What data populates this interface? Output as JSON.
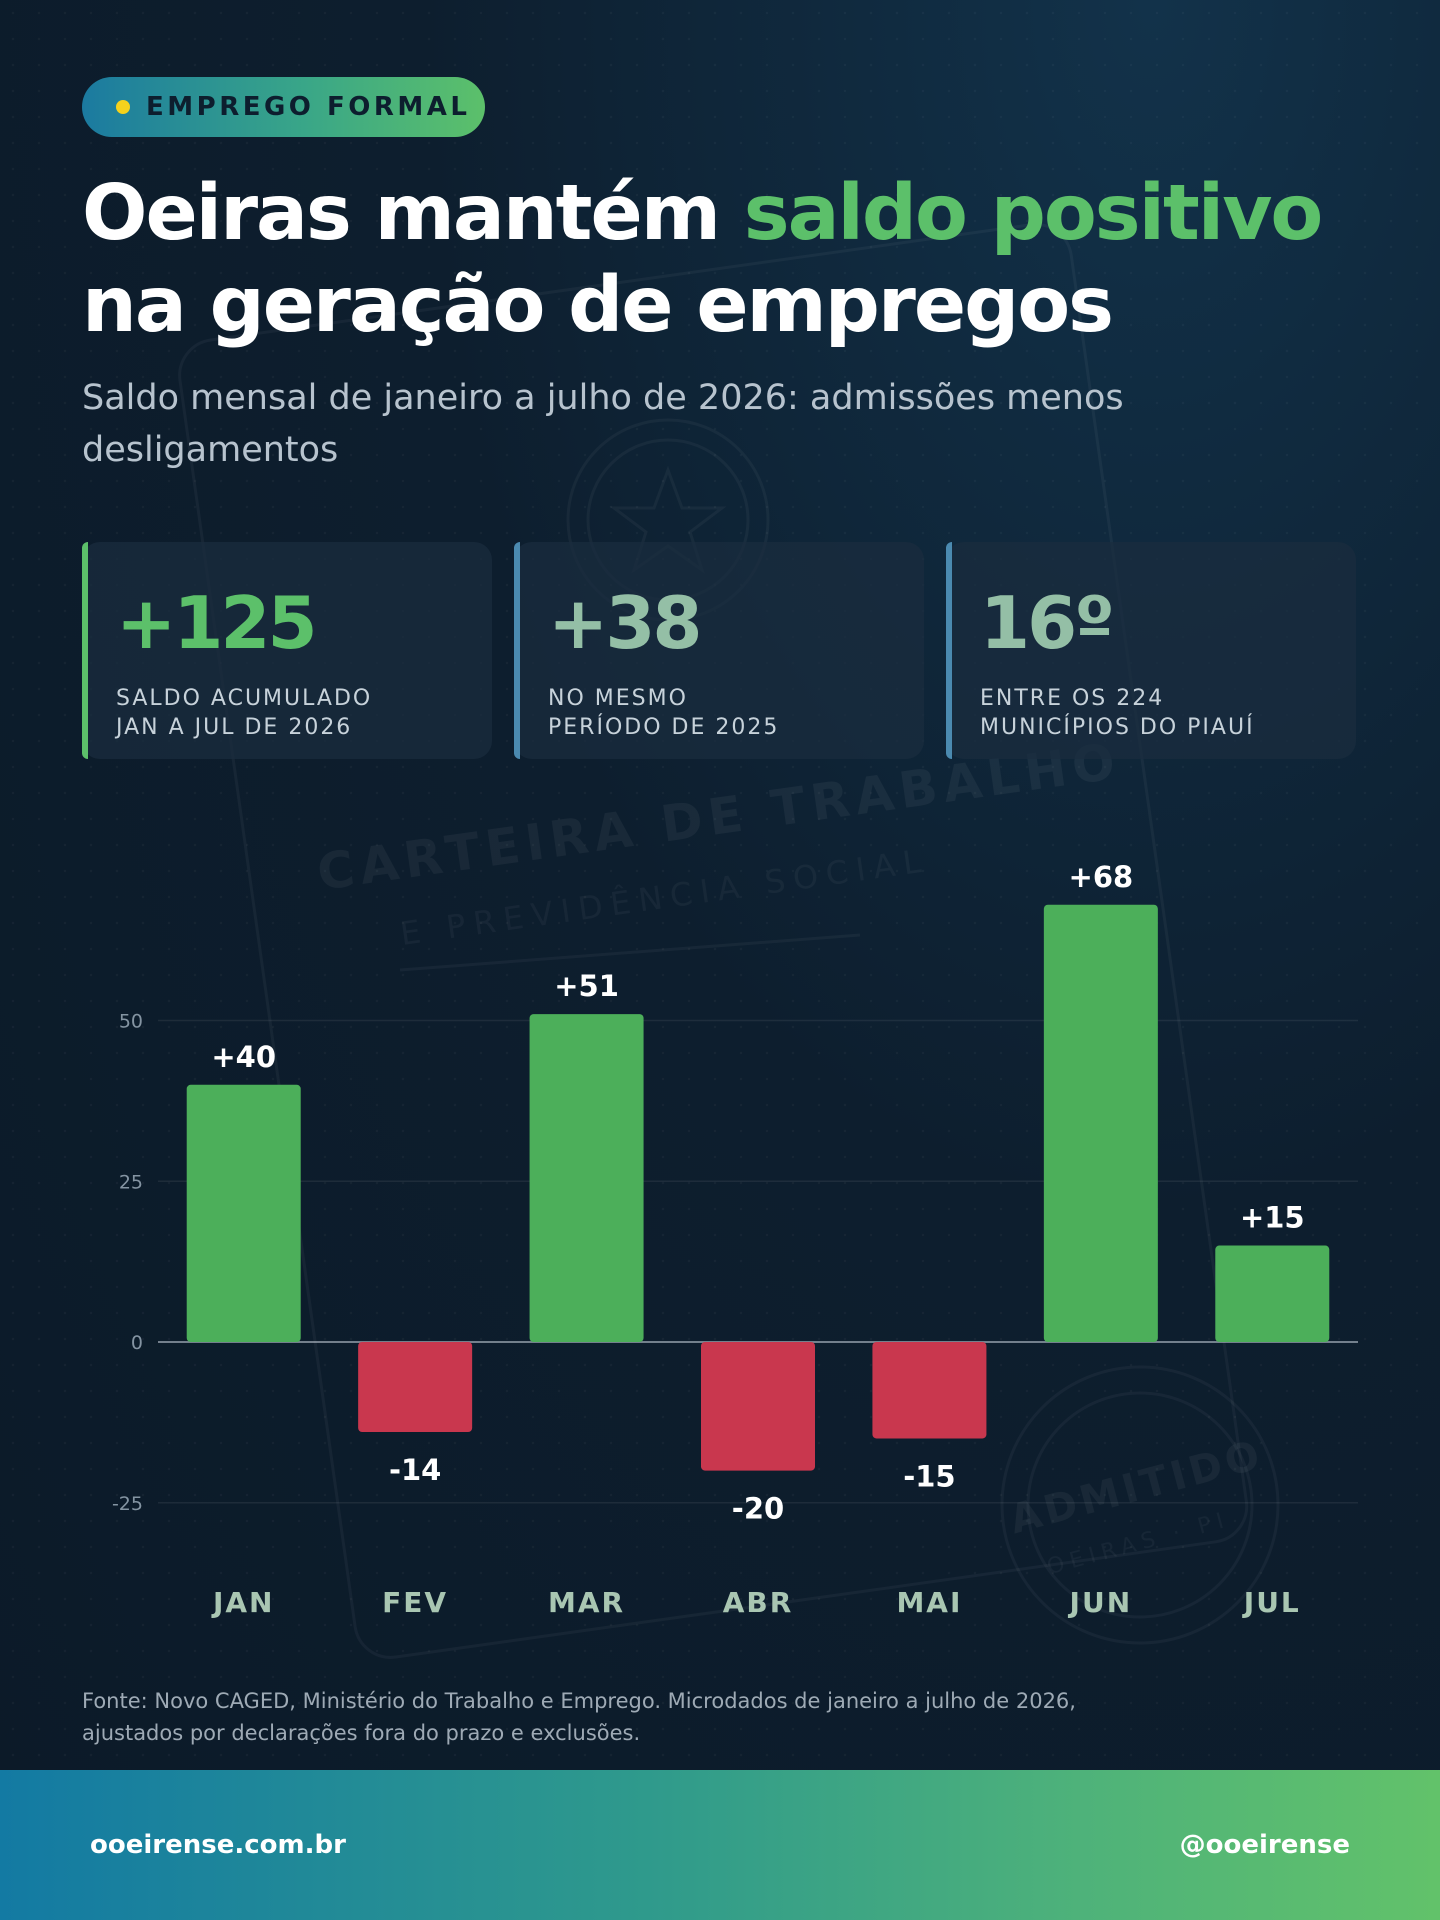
{
  "tag": {
    "label": "EMPREGO FORMAL"
  },
  "headline": {
    "part1": "Oeiras mantém ",
    "highlight": "saldo positivo",
    "part2": "na geração de empregos"
  },
  "subtitle": "Saldo mensal de janeiro a julho de 2026: admissões menos desligamentos",
  "stats": [
    {
      "value": "+125",
      "label_line1": "SALDO ACUMULADO",
      "label_line2": "JAN A JUL DE 2026"
    },
    {
      "value": "+38",
      "label_line1": "NO MESMO",
      "label_line2": "PERÍODO DE 2025"
    },
    {
      "value": "16º",
      "label_line1": "ENTRE OS 224",
      "label_line2": "MUNICÍPIOS DO PIAUÍ"
    }
  ],
  "watermark": {
    "line1": "CARTEIRA DE TRABALHO",
    "line2": "E PREVIDÊNCIA SOCIAL",
    "stamp1": "ADMITIDO",
    "stamp2": "OEIRAS · PI"
  },
  "chart_data": {
    "type": "bar",
    "categories": [
      "JAN",
      "FEV",
      "MAR",
      "ABR",
      "MAI",
      "JUN",
      "JUL"
    ],
    "values": [
      40,
      -14,
      51,
      -20,
      -15,
      68,
      15
    ],
    "data_labels": [
      "+40",
      "-14",
      "+51",
      "-20",
      "-15",
      "+68",
      "+15"
    ],
    "yticks": [
      50,
      25,
      0,
      -25
    ],
    "ylim": [
      -35,
      70
    ],
    "grid": true,
    "colors": {
      "positive": "#4caf5a",
      "negative": "#c9374e"
    }
  },
  "source": "Fonte: Novo CAGED, Ministério do Trabalho e Emprego. Microdados de janeiro a julho de 2026, ajustados por declarações fora do prazo e exclusões.",
  "footer": {
    "site": "ooeirense.com.br",
    "handle": "@ooeirense"
  }
}
